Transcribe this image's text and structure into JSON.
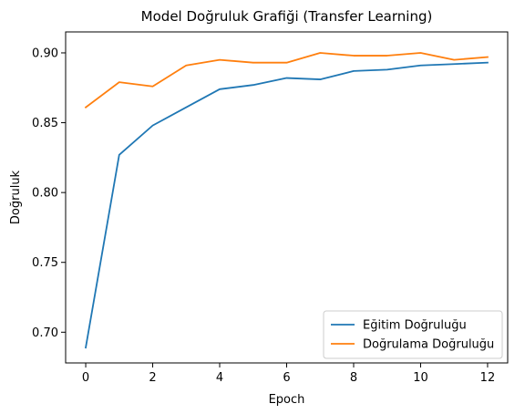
{
  "chart_data": {
    "type": "line",
    "title": "Model Doğruluk Grafiği (Transfer Learning)",
    "xlabel": "Epoch",
    "ylabel": "Doğruluk",
    "xlim": [
      -0.6,
      12.6
    ],
    "ylim": [
      0.678,
      0.915
    ],
    "xticks": [
      0,
      2,
      4,
      6,
      8,
      10,
      12
    ],
    "yticks": [
      0.7,
      0.75,
      0.8,
      0.85,
      0.9
    ],
    "ytick_labels": [
      "0.70",
      "0.75",
      "0.80",
      "0.85",
      "0.90"
    ],
    "grid": false,
    "legend_position": "lower-right",
    "x": [
      0,
      1,
      2,
      3,
      4,
      5,
      6,
      7,
      8,
      9,
      10,
      11,
      12
    ],
    "series": [
      {
        "name": "Eğitim Doğruluğu",
        "color": "#1f77b4",
        "values": [
          0.689,
          0.827,
          0.848,
          0.861,
          0.874,
          0.877,
          0.882,
          0.881,
          0.887,
          0.888,
          0.891,
          0.892,
          0.893
        ]
      },
      {
        "name": "Doğrulama Doğruluğu",
        "color": "#ff7f0e",
        "values": [
          0.861,
          0.879,
          0.876,
          0.891,
          0.895,
          0.893,
          0.893,
          0.9,
          0.898,
          0.898,
          0.9,
          0.895,
          0.897
        ]
      }
    ]
  }
}
